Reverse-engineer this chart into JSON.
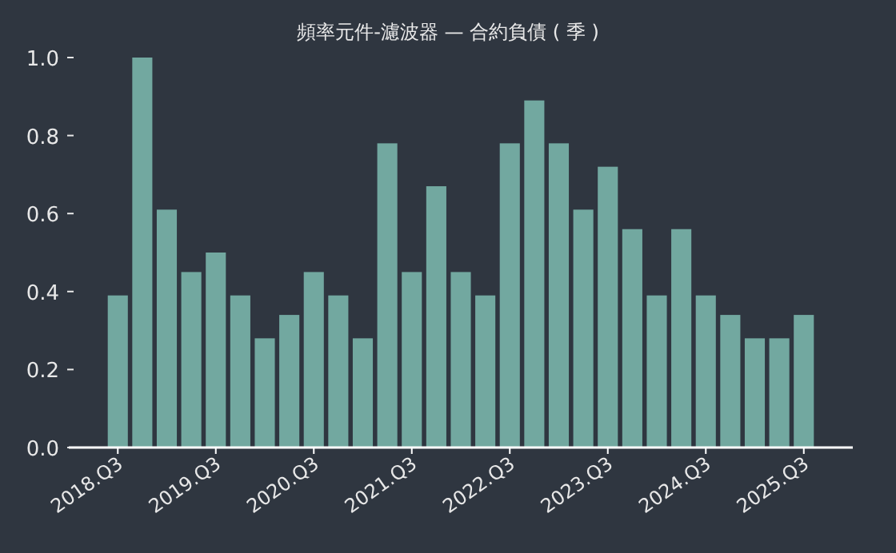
{
  "chart_data": {
    "type": "bar",
    "title": "頻率元件-濾波器 — 合約負債 ( 季 )",
    "categories": [
      "2018.Q3",
      null,
      null,
      null,
      "2019.Q3",
      null,
      null,
      null,
      "2020.Q3",
      null,
      null,
      null,
      "2021.Q3",
      null,
      null,
      null,
      "2022.Q3",
      null,
      null,
      null,
      "2023.Q3",
      null,
      null,
      null,
      "2024.Q3",
      null,
      null,
      null,
      "2025.Q3"
    ],
    "values": [
      0.39,
      1.0,
      0.61,
      0.45,
      0.5,
      0.39,
      0.28,
      0.34,
      0.45,
      0.39,
      0.28,
      0.78,
      0.45,
      0.67,
      0.45,
      0.39,
      0.78,
      0.89,
      0.78,
      0.61,
      0.72,
      0.56,
      0.39,
      0.56,
      0.39,
      0.34,
      0.28,
      0.28,
      0.34
    ],
    "color": "#72a8a0",
    "ylim": [
      0,
      1.0
    ],
    "yticks": [
      {
        "value": 0,
        "label": "0.0"
      },
      {
        "value": 0.2,
        "label": "0.2"
      },
      {
        "value": 0.4,
        "label": "0.4"
      },
      {
        "value": 0.6,
        "label": "0.6"
      },
      {
        "value": 0.8,
        "label": "0.8"
      },
      {
        "value": 1.0,
        "label": "1.0"
      }
    ]
  }
}
